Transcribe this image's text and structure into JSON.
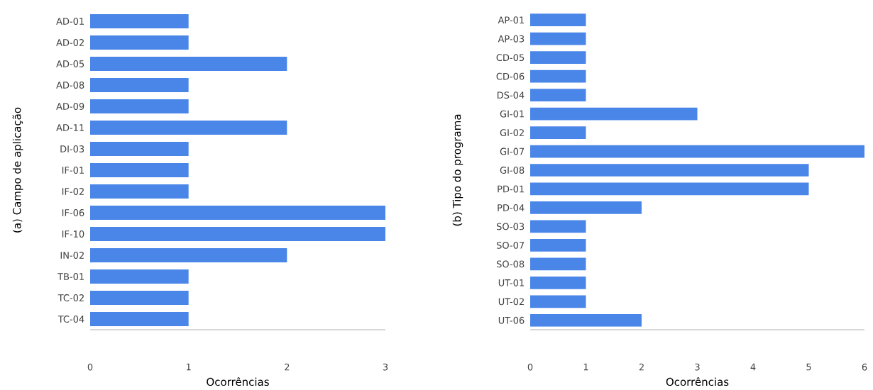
{
  "chart_data": [
    {
      "type": "bar",
      "orientation": "horizontal",
      "ylabel": "(a) Campo de aplicação",
      "xlabel": "Ocorrências",
      "categories": [
        "AD-01",
        "AD-02",
        "AD-05",
        "AD-08",
        "AD-09",
        "AD-11",
        "DI-03",
        "IF-01",
        "IF-02",
        "IF-06",
        "IF-10",
        "IN-02",
        "TB-01",
        "TC-02",
        "TC-04"
      ],
      "values": [
        1,
        1,
        2,
        1,
        1,
        2,
        1,
        1,
        1,
        3,
        3,
        2,
        1,
        1,
        1
      ],
      "color": "#4a86e8",
      "xlim": [
        0,
        3
      ],
      "xticks": [
        0,
        1,
        2,
        3
      ]
    },
    {
      "type": "bar",
      "orientation": "horizontal",
      "ylabel": "(b) Tipo do programa",
      "xlabel": "Ocorrências",
      "categories": [
        "AP-01",
        "AP-03",
        "CD-05",
        "CD-06",
        "DS-04",
        "GI-01",
        "GI-02",
        "GI-07",
        "GI-08",
        "PD-01",
        "PD-04",
        "SO-03",
        "SO-07",
        "SO-08",
        "UT-01",
        "UT-02",
        "UT-06"
      ],
      "values": [
        1,
        1,
        1,
        1,
        1,
        3,
        1,
        6,
        5,
        5,
        2,
        1,
        1,
        1,
        1,
        1,
        2
      ],
      "color": "#4a86e8",
      "xlim": [
        0,
        6
      ],
      "xticks": [
        0,
        1,
        2,
        3,
        4,
        5,
        6
      ]
    }
  ]
}
